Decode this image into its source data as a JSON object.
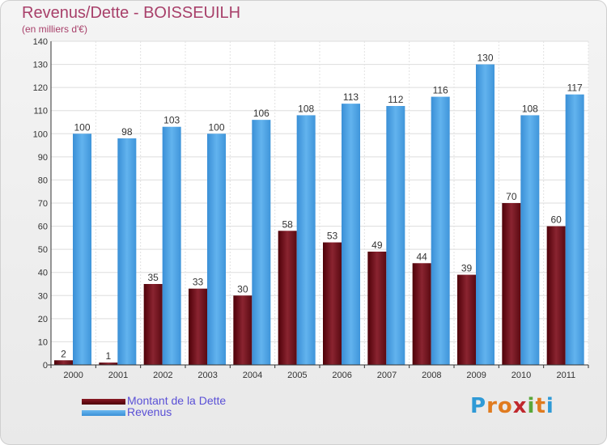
{
  "header": {
    "title": "Revenus/Dette - BOISSEUILH",
    "subtitle": "(en milliers d'€)"
  },
  "chart_data": {
    "type": "bar",
    "categories": [
      "2000",
      "2001",
      "2002",
      "2003",
      "2004",
      "2005",
      "2006",
      "2007",
      "2008",
      "2009",
      "2010",
      "2011"
    ],
    "series": [
      {
        "name": "Montant de la Dette",
        "values": [
          2,
          1,
          35,
          33,
          30,
          58,
          53,
          49,
          44,
          39,
          70,
          60
        ],
        "color": "#6e0c16"
      },
      {
        "name": "Revenus",
        "values": [
          100,
          98,
          103,
          100,
          106,
          108,
          113,
          112,
          116,
          130,
          108,
          117
        ],
        "color": "#4da3e6"
      }
    ],
    "ylim": [
      0,
      140
    ],
    "yticks": [
      0,
      10,
      20,
      30,
      40,
      50,
      60,
      70,
      80,
      90,
      100,
      110,
      120,
      130,
      140
    ],
    "grid": true,
    "legend": "bottom-left"
  },
  "logo": {
    "letters": [
      "P",
      "r",
      "o",
      "x",
      "i",
      "t",
      "i"
    ],
    "colors": [
      "#2f9ad6",
      "#e07b1f",
      "#e07b1f",
      "#c0282d",
      "#5aa83a",
      "#e07b1f",
      "#2f9ad6"
    ]
  }
}
